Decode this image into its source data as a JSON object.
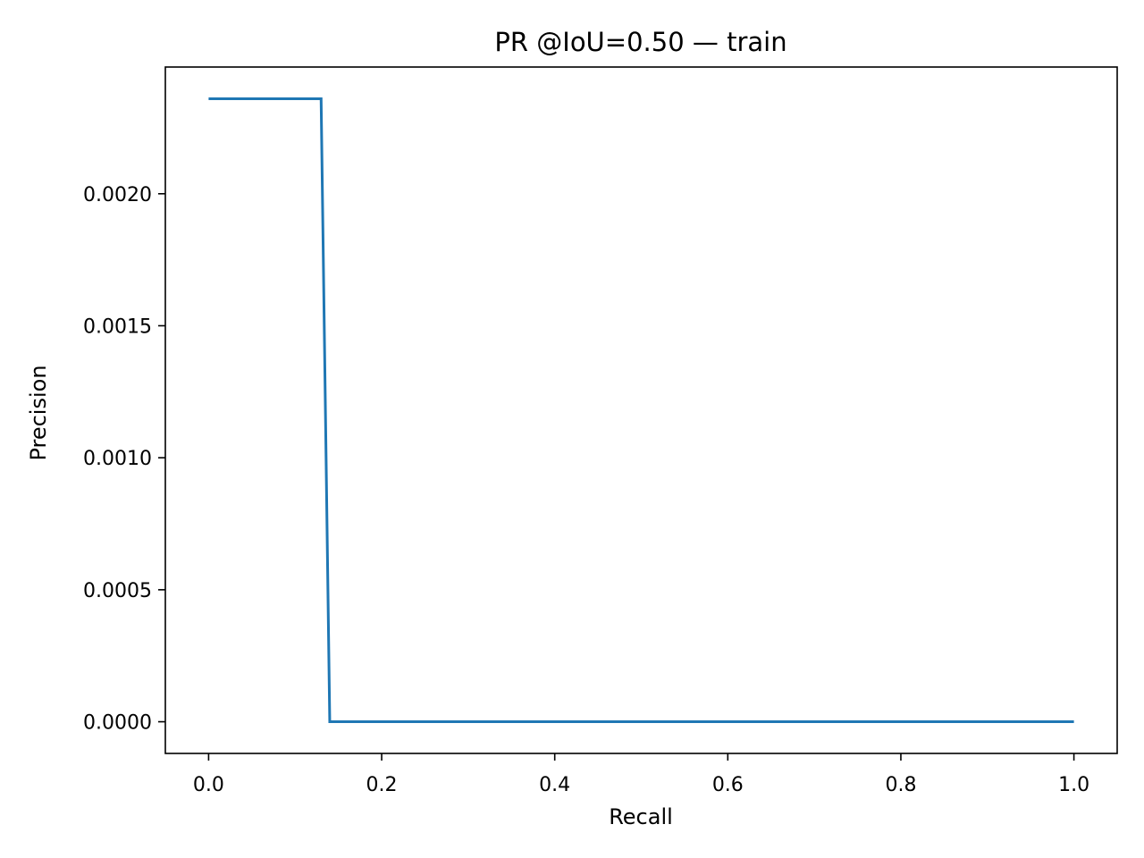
{
  "chart_data": {
    "type": "line",
    "title": "PR @IoU=0.50 — train",
    "xlabel": "Recall",
    "ylabel": "Precision",
    "xlim": [
      -0.05,
      1.05
    ],
    "ylim": [
      -0.00012,
      0.00248
    ],
    "x_ticks": [
      0.0,
      0.2,
      0.4,
      0.6,
      0.8,
      1.0
    ],
    "x_tick_labels": [
      "0.0",
      "0.2",
      "0.4",
      "0.6",
      "0.8",
      "1.0"
    ],
    "y_ticks": [
      0.0,
      0.0005,
      0.001,
      0.0015,
      0.002
    ],
    "y_tick_labels": [
      "0.0000",
      "0.0005",
      "0.0010",
      "0.0015",
      "0.0020"
    ],
    "grid": false,
    "legend": "none",
    "series": [
      {
        "color": "#1f77b4",
        "x": [
          0.0,
          0.13,
          0.14,
          1.0
        ],
        "y": [
          0.00236,
          0.00236,
          0.0,
          0.0
        ]
      }
    ]
  }
}
